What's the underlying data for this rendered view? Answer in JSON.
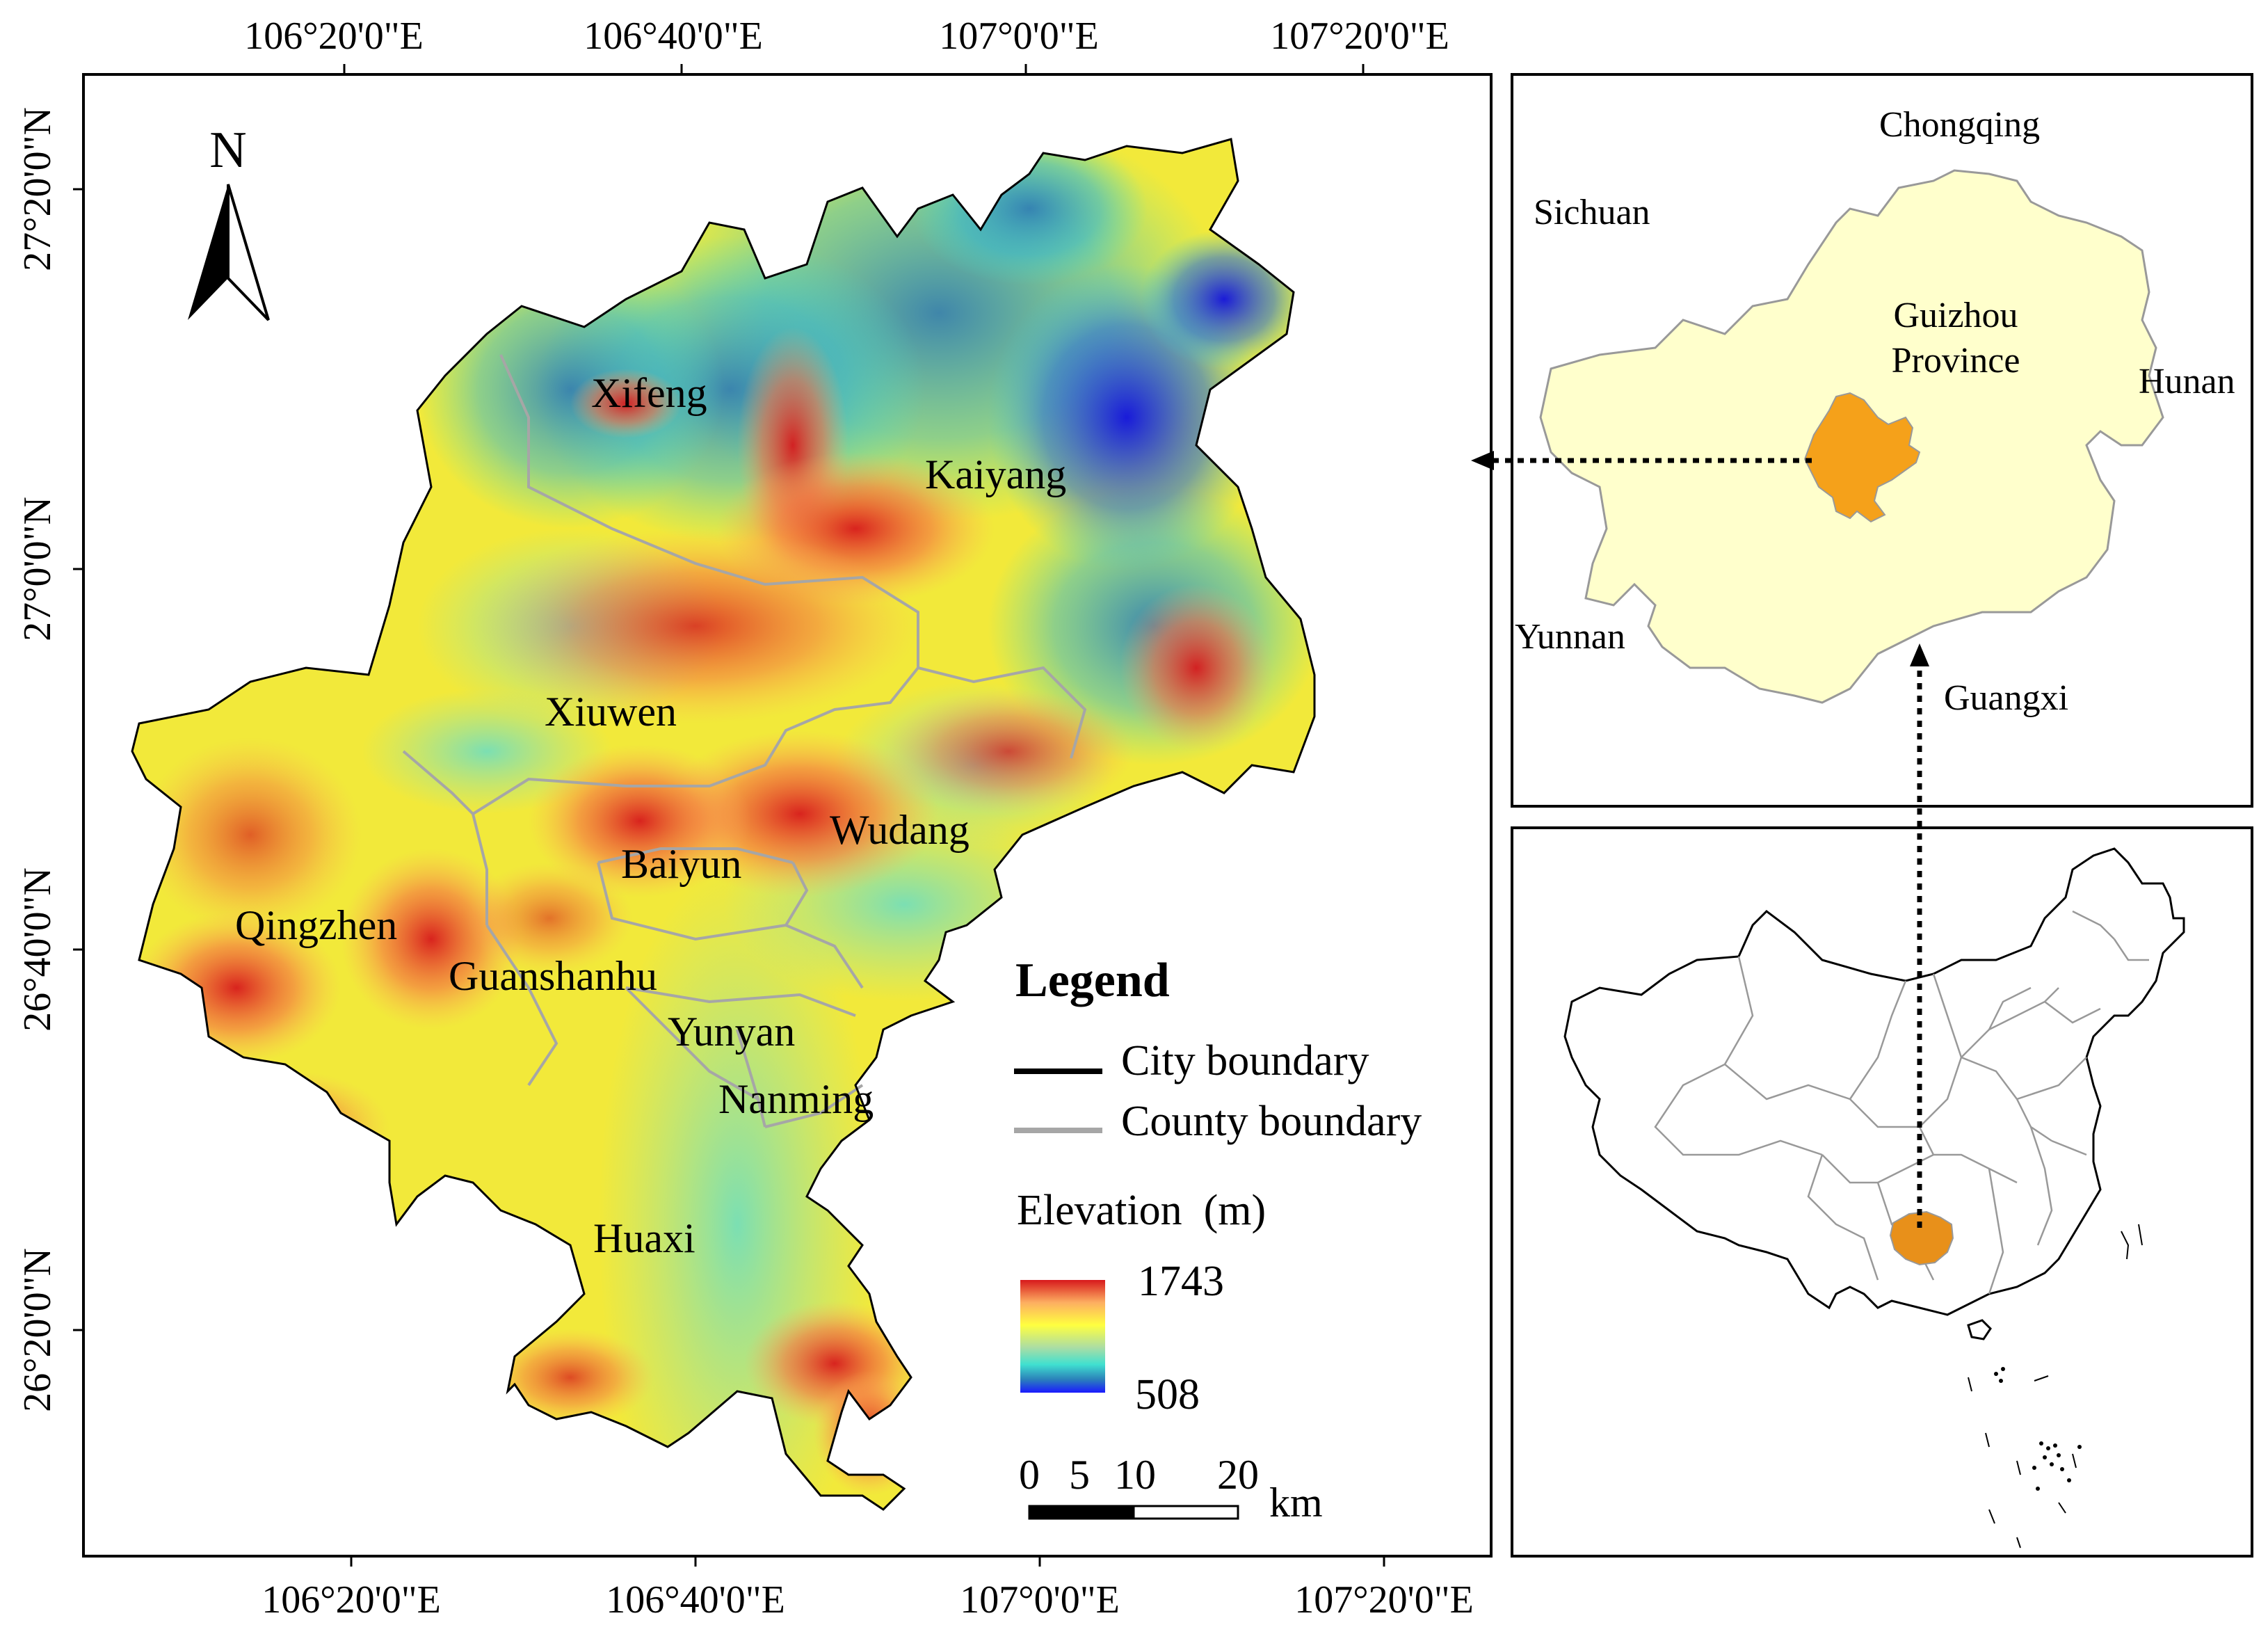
{
  "main_map": {
    "top_longitude_labels": [
      "106°20'0\"E",
      "106°40'0\"E",
      "107°0'0\"E",
      "107°20'0\"E"
    ],
    "bottom_longitude_labels": [
      "106°20'0\"E",
      "106°40'0\"E",
      "107°0'0\"E",
      "107°20'0\"E"
    ],
    "latitude_labels": [
      "27°20'0\"N",
      "27°0'0\"N",
      "26°40'0\"N",
      "26°20'0\"N"
    ],
    "north_arrow_label": "N",
    "place_names": {
      "xifeng": "Xifeng",
      "kaiyang": "Kaiyang",
      "xiuwen": "Xiuwen",
      "wudang": "Wudang",
      "baiyun": "Baiyun",
      "qingzhen": "Qingzhen",
      "guanshanhu": "Guanshanhu",
      "yunyan": "Yunyan",
      "nanming": "Nanming",
      "huaxi": "Huaxi"
    }
  },
  "legend": {
    "title": "Legend",
    "city_boundary": "City boundary",
    "county_boundary": "County boundary",
    "elevation_title": "Elevation  (m)",
    "elevation_max": "1743",
    "elevation_min": "508",
    "colors": {
      "city_boundary": "#000000",
      "county_boundary": "#a6a6a6",
      "ramp": [
        "#d7191c",
        "#fdae61",
        "#ffff40",
        "#abdda4",
        "#40e0d0",
        "#2b83ba",
        "#1a1aff"
      ]
    },
    "scale_labels": [
      "0",
      "5",
      "10",
      "20"
    ],
    "scale_unit": "km"
  },
  "province_inset": {
    "labels": {
      "chongqing": "Chongqing",
      "sichuan": "Sichuan",
      "province_line1": "Guizhou",
      "province_line2": "Province",
      "hunan": "Hunan",
      "yunnan": "Yunnan",
      "guangxi": "Guangxi"
    },
    "colors": {
      "province_fill": "#ffffcc",
      "highlight": "#f5a11a"
    }
  },
  "china_inset": {
    "colors": {
      "highlight": "#e8901a"
    }
  }
}
